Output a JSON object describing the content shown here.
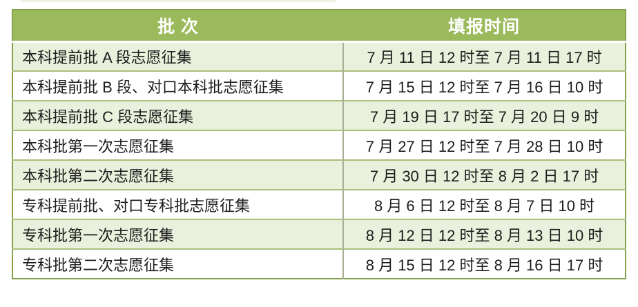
{
  "chart_data": {
    "type": "table",
    "title": "",
    "columns": [
      "批 次",
      "填报时间"
    ],
    "rows": [
      [
        "本科提前批 A 段志愿征集",
        "7 月 11 日 12 时至 7 月 11 日 17 时"
      ],
      [
        "本科提前批 B 段、对口本科批志愿征集",
        "7 月 15 日 12 时至 7 月 16 日 10 时"
      ],
      [
        "本科提前批 C 段志愿征集",
        "7 月 19 日 17 时至 7 月 20 日 9 时"
      ],
      [
        "本科批第一次志愿征集",
        "7 月 27 日 12 时至 7 月 28 日 10 时"
      ],
      [
        "本科批第二次志愿征集",
        "7 月 30 日 12 时至 8 月 2 日 17 时"
      ],
      [
        "专科提前批、对口专科批志愿征集",
        "8 月 6 日 12 时至 8 月 7 日 10 时"
      ],
      [
        "专科批第一次志愿征集",
        "8 月 12 日 12 时至 8 月 13 日 10 时"
      ],
      [
        "专科批第二次志愿征集",
        "8 月 15 日 12 时至 8 月 16 日 17 时"
      ]
    ],
    "layout_hints": {
      "header_row": true,
      "zebra_striping": "odd rows light green, even rows white",
      "column_alignment": [
        "left",
        "center"
      ]
    }
  },
  "table": {
    "headers": {
      "batch": "批 次",
      "time": "填报时间"
    },
    "rows": [
      {
        "batch": "本科提前批 A 段志愿征集",
        "time": "7 月 11 日 12 时至 7 月 11 日 17 时"
      },
      {
        "batch": "本科提前批 B 段、对口本科批志愿征集",
        "time": "7 月 15 日 12 时至 7 月 16 日 10 时"
      },
      {
        "batch": "本科提前批 C 段志愿征集",
        "time": "7 月 19 日 17 时至 7 月 20 日 9 时"
      },
      {
        "batch": "本科批第一次志愿征集",
        "time": "7 月 27 日 12 时至 7 月 28 日 10 时"
      },
      {
        "batch": "本科批第二次志愿征集",
        "time": "7 月 30 日 12 时至 8 月 2 日 17 时"
      },
      {
        "batch": "专科提前批、对口专科批志愿征集",
        "time": "8 月 6 日 12 时至 8 月 7 日 10 时"
      },
      {
        "batch": "专科批第一次志愿征集",
        "time": "8 月 12 日 12 时至 8 月 13 日 10 时"
      },
      {
        "batch": "专科批第二次志愿征集",
        "time": "8 月 15 日 12 时至 8 月 16 日 17 时"
      }
    ]
  },
  "colors": {
    "header_bg": "#9bba5c",
    "header_text": "#ffffff",
    "row_alt_bg": "#e9f0db",
    "row_bg": "#ffffff",
    "horizontal_border": "#aabf7a",
    "outer_border": "#87a04c",
    "column_divider": "#a9af95",
    "text": "#1c1c1c"
  }
}
